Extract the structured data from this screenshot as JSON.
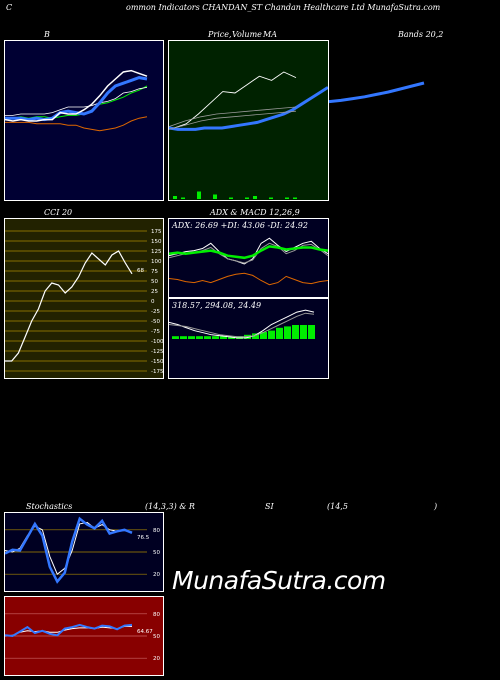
{
  "header": {
    "title_prefix": "C",
    "title": "ommon  Indicators CHANDAN_ST Chandan  Healthcare  Ltd MunafaSutra.com"
  },
  "labels": {
    "bb": "B",
    "price_ma": "Price,",
    "volume": "Volume",
    "ma": "MA",
    "bands": "Bands 20,2",
    "cci": "CCI 20",
    "adx_macd": "ADX  & MACD 12,26,9",
    "adx_values": "ADX: 26.69  +DI: 43.06  -DI: 24.92",
    "macd_values": "318.57,  294.08,  24.49",
    "stoch": "Stochastics",
    "stoch_params": "(14,3,3) & R",
    "rsi": "SI",
    "rsi_params": "(14,5",
    "rsi_close": ")",
    "cci_value": "68",
    "stoch_value": "76.5",
    "rsi_value": "64.67"
  },
  "watermark": "MunafaSutra.com",
  "colors": {
    "bb_bg": "#000033",
    "price_bg": "#002200",
    "cci_bg": "#222200",
    "adx_bg": "#000022",
    "stoch_bg": "#000022",
    "rsi_bg": "#880000",
    "blue": "#3377ff",
    "green": "#00ee00",
    "orange": "#dd6600",
    "white": "#ffffff",
    "grey": "#999999"
  },
  "chart_data": [
    {
      "type": "line",
      "name": "Bollinger Bands",
      "series": [
        {
          "values": [
            52,
            52,
            53,
            52,
            53,
            53,
            52,
            53,
            54,
            54,
            55,
            58,
            62,
            63,
            65,
            67,
            70,
            72,
            75
          ]
        },
        {
          "values": [
            54,
            54,
            55,
            55,
            55,
            55,
            56,
            58,
            60,
            60,
            60,
            61,
            63,
            64,
            66,
            70,
            71,
            73,
            74
          ]
        },
        {
          "values": [
            49,
            49,
            49,
            49,
            48,
            48,
            48,
            48,
            47,
            47,
            45,
            44,
            43,
            44,
            45,
            47,
            50,
            52,
            53
          ]
        },
        {
          "values": [
            52,
            52,
            52,
            51,
            52,
            51,
            52,
            56,
            57,
            56,
            55,
            57,
            63,
            70,
            75,
            77,
            79,
            81,
            80
          ]
        },
        {
          "values": [
            51,
            50,
            51,
            50,
            50,
            51,
            51,
            56,
            55,
            55,
            58,
            62,
            68,
            75,
            80,
            85,
            86,
            84,
            82
          ]
        }
      ]
    },
    {
      "type": "line",
      "name": "Price MA",
      "series": [
        {
          "values": [
            45,
            44,
            44,
            44,
            45,
            45,
            45,
            46,
            47,
            48,
            49,
            51,
            53,
            55,
            58,
            62,
            66,
            70,
            74
          ]
        },
        {
          "values": [
            45,
            48,
            55,
            63,
            71,
            70,
            76,
            82,
            79,
            85,
            81
          ]
        },
        {
          "values": [
            46,
            50,
            53,
            55,
            56,
            57,
            58,
            59,
            60
          ]
        },
        {
          "values": [
            44,
            47,
            50,
            52,
            53,
            54,
            55,
            56,
            57
          ]
        }
      ],
      "volume": [
        2,
        1,
        0,
        5,
        0,
        3,
        0,
        1,
        0,
        1,
        2,
        0,
        1,
        0,
        1,
        1
      ]
    },
    {
      "type": "line",
      "name": "CCI 20",
      "yticks": [
        175,
        150,
        125,
        100,
        75,
        50,
        25,
        0,
        -25,
        -50,
        -75,
        -100,
        -125,
        -150,
        -175
      ],
      "series": [
        {
          "values": [
            -150,
            -150,
            -130,
            -90,
            -50,
            -20,
            25,
            45,
            40,
            20,
            35,
            60,
            95,
            120,
            105,
            90,
            115,
            125,
            95,
            68
          ]
        }
      ]
    },
    {
      "type": "line",
      "name": "ADX",
      "series": [
        {
          "values": [
            38,
            40,
            42,
            43,
            45,
            50,
            42,
            35,
            33,
            30,
            35,
            50,
            55,
            48,
            42,
            46,
            50,
            52,
            45,
            40
          ]
        },
        {
          "values": [
            36,
            38,
            40,
            41,
            43,
            46,
            40,
            35,
            33,
            31,
            34,
            45,
            50,
            47,
            40,
            43,
            48,
            49,
            44,
            38
          ]
        },
        {
          "values": [
            40,
            41,
            40,
            41,
            42,
            43,
            41,
            38,
            37,
            36,
            38,
            43,
            47,
            46,
            44,
            45,
            46,
            46,
            44,
            43
          ]
        },
        {
          "values": [
            16,
            15,
            13,
            12,
            14,
            12,
            15,
            18,
            20,
            21,
            19,
            14,
            10,
            12,
            18,
            15,
            12,
            11,
            13,
            14
          ]
        }
      ]
    },
    {
      "type": "line",
      "name": "MACD",
      "series": [
        {
          "values": [
            60,
            58,
            55,
            52,
            50,
            48,
            47,
            46,
            45,
            45,
            47,
            52,
            58,
            62,
            66,
            70,
            72,
            70
          ]
        },
        {
          "values": [
            58,
            57,
            56,
            54,
            52,
            50,
            48,
            47,
            46,
            46,
            47,
            50,
            54,
            58,
            62,
            66,
            69,
            68
          ]
        }
      ],
      "histogram": [
        2,
        2,
        2,
        2,
        2,
        2,
        2,
        2,
        2,
        3,
        4,
        5,
        6,
        8,
        9,
        10,
        10,
        10
      ]
    },
    {
      "type": "line",
      "name": "Stochastics",
      "yticks": [
        80,
        50,
        20
      ],
      "series": [
        {
          "values": [
            48,
            53,
            52,
            70,
            88,
            72,
            30,
            10,
            22,
            64,
            95,
            87,
            82,
            92,
            75,
            78,
            80,
            76
          ]
        },
        {
          "values": [
            52,
            50,
            55,
            72,
            85,
            80,
            44,
            20,
            28,
            52,
            88,
            90,
            82,
            87,
            80,
            78,
            79,
            77
          ]
        }
      ]
    },
    {
      "type": "line",
      "name": "RSI",
      "yticks": [
        80,
        50,
        20
      ],
      "series": [
        {
          "values": [
            51,
            50,
            56,
            62,
            54,
            57,
            53,
            51,
            60,
            62,
            65,
            62,
            60,
            64,
            63,
            59,
            64,
            65
          ]
        },
        {
          "values": [
            50,
            51,
            55,
            57,
            56,
            57,
            55,
            55,
            58,
            60,
            61,
            61,
            60,
            62,
            61,
            60,
            63,
            63
          ]
        }
      ]
    }
  ]
}
